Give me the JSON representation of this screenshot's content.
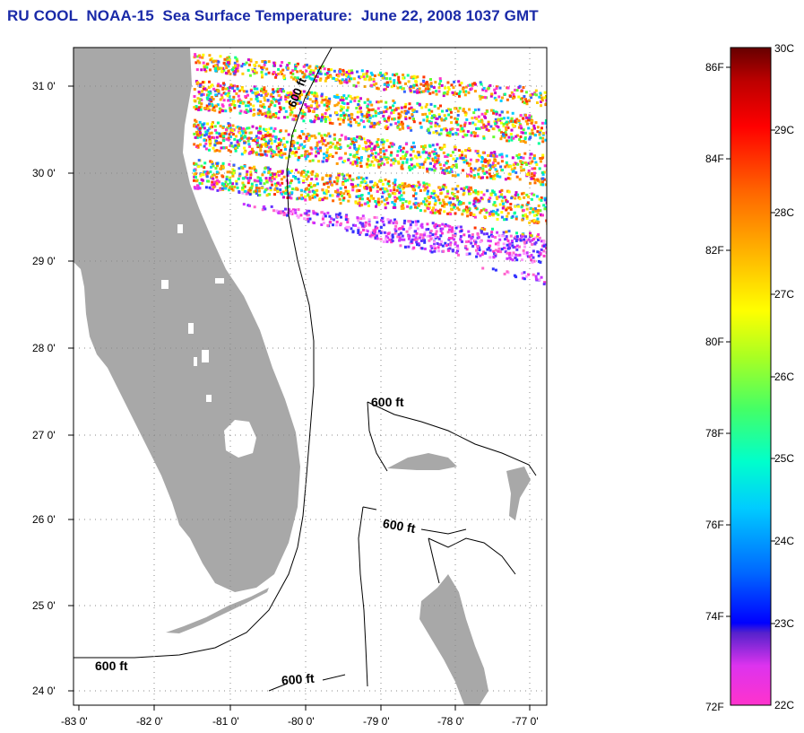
{
  "title": "RU COOL  NOAA-15  Sea Surface Temperature:  June 22, 2008 1037 GMT",
  "map": {
    "lat_labels": [
      "31 0'",
      "30 0'",
      "29 0'",
      "28 0'",
      "27 0'",
      "26 0'",
      "25 0'",
      "24 0'"
    ],
    "lon_labels": [
      "-83 0'",
      "-82 0'",
      "-81 0'",
      "-80 0'",
      "-79 0'",
      "-78 0'",
      "-77 0'"
    ],
    "contour_labels": [
      "600 ft",
      "600 ft",
      "600 ft",
      "600 ft",
      "600 ft"
    ],
    "land_color": "#a8a8a8",
    "grid": "dotted"
  },
  "colorbar": {
    "f_labels": [
      "86F",
      "84F",
      "82F",
      "80F",
      "78F",
      "76F",
      "74F",
      "72F"
    ],
    "c_labels": [
      "30C",
      "29C",
      "28C",
      "27C",
      "26C",
      "25C",
      "24C",
      "23C",
      "22C"
    ]
  }
}
